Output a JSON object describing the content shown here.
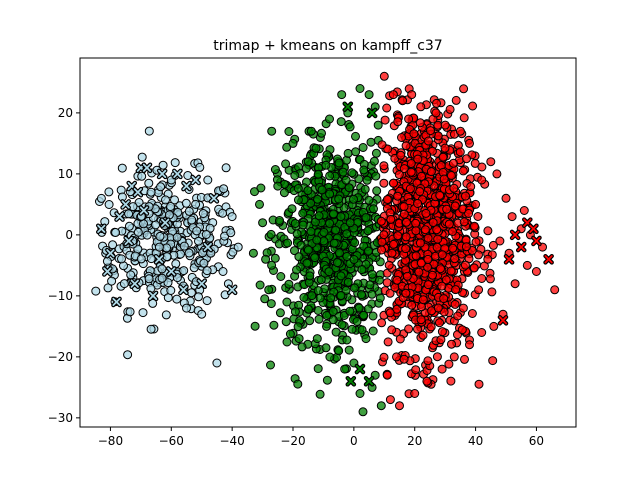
{
  "chart_data": {
    "type": "scatter",
    "title": "trimap + kmeans on kampff_c37",
    "xlabel": "",
    "ylabel": "",
    "xlim": [
      -90,
      73
    ],
    "ylim": [
      -31.5,
      29
    ],
    "xticks": [
      -80,
      -60,
      -40,
      -20,
      0,
      20,
      40,
      60
    ],
    "yticks": [
      -30,
      -20,
      -10,
      0,
      10,
      20
    ],
    "grid": false,
    "legend": "none",
    "marker_edge_color": "#000000",
    "series": [
      {
        "cluster": 0,
        "color": "#add8e6",
        "cloud": {
          "cx": -62,
          "cy": -1,
          "sx": 12,
          "sy": 5.5,
          "xmin": -85,
          "xmax": -38,
          "count": 380
        },
        "circles": [
          [
            -45,
            -21
          ],
          [
            -42,
            11
          ],
          [
            -55,
            -12
          ],
          [
            -50,
            -13
          ],
          [
            -48,
            9
          ],
          [
            -40,
            3
          ],
          [
            -43,
            -6
          ],
          [
            -60,
            9
          ],
          [
            -38,
            -2
          ],
          [
            -52,
            5
          ],
          [
            -47,
            -3
          ],
          [
            -58,
            -7
          ]
        ],
        "crosses": [
          [
            -70,
            11
          ],
          [
            -68,
            11
          ],
          [
            -63,
            10
          ],
          [
            -58,
            10
          ],
          [
            -55,
            8
          ],
          [
            -73,
            8
          ],
          [
            -78,
            -11
          ],
          [
            -80,
            -3
          ],
          [
            -75,
            5
          ],
          [
            -72,
            -8
          ],
          [
            -66,
            -10
          ],
          [
            -62,
            2
          ],
          [
            -83,
            1
          ],
          [
            -60,
            -6
          ],
          [
            -52,
            9
          ],
          [
            -48,
            -2
          ],
          [
            -46,
            6
          ],
          [
            -40,
            -9
          ],
          [
            -50,
            -8
          ],
          [
            -77,
            3
          ],
          [
            -69,
            4
          ],
          [
            -64,
            -4
          ],
          [
            -56,
            -9
          ],
          [
            -81,
            -6
          ],
          [
            -74,
            -1
          ],
          [
            -71,
            7
          ]
        ]
      },
      {
        "cluster": 1,
        "color": "#008000",
        "cloud": {
          "cx": -7,
          "cy": -1,
          "sx": 9,
          "sy": 8,
          "xmin": -33,
          "xmax": 9,
          "count": 750
        },
        "circles": [
          [
            -27,
            17
          ],
          [
            -20,
            15
          ],
          [
            -2,
            20
          ],
          [
            2,
            24
          ],
          [
            5,
            23
          ],
          [
            7,
            21
          ],
          [
            -4,
            23
          ],
          [
            -8,
            19
          ],
          [
            -14,
            17
          ],
          [
            8,
            18
          ],
          [
            -18,
            -17
          ],
          [
            -12,
            -17
          ],
          [
            -5,
            -19
          ],
          [
            0,
            -21
          ],
          [
            2,
            -26
          ],
          [
            6,
            -25
          ],
          [
            9,
            -28
          ],
          [
            3,
            -29
          ],
          [
            -3,
            -22
          ],
          [
            -9,
            -15
          ],
          [
            -29,
            -4
          ],
          [
            -30,
            2
          ],
          [
            -25,
            8
          ],
          [
            -33,
            -3
          ],
          [
            -31,
            5
          ],
          [
            -28,
            -9
          ],
          [
            -22,
            -11
          ],
          [
            7,
            -23
          ],
          [
            4,
            -17
          ],
          [
            -15,
            12
          ]
        ],
        "crosses": [
          [
            -2,
            21
          ],
          [
            6,
            20
          ],
          [
            -1,
            -24
          ],
          [
            5,
            -24
          ],
          [
            2,
            -22
          ]
        ]
      },
      {
        "cluster": 2,
        "color": "#ff0000",
        "cloud": {
          "cx": 23,
          "cy": 1,
          "sx": 8,
          "sy": 10,
          "xmin": 9,
          "xmax": 46,
          "count": 1100
        },
        "circles": [
          [
            10,
            26
          ],
          [
            13,
            23
          ],
          [
            16,
            22
          ],
          [
            19,
            23
          ],
          [
            22,
            21
          ],
          [
            26,
            19
          ],
          [
            30,
            18
          ],
          [
            35,
            17
          ],
          [
            38,
            15
          ],
          [
            45,
            12
          ],
          [
            47,
            10
          ],
          [
            50,
            6
          ],
          [
            52,
            3
          ],
          [
            55,
            1
          ],
          [
            58,
            0
          ],
          [
            62,
            -2
          ],
          [
            66,
            -9
          ],
          [
            60,
            -6
          ],
          [
            57,
            -5
          ],
          [
            53,
            -8
          ],
          [
            49,
            -13
          ],
          [
            46,
            -15
          ],
          [
            42,
            -16
          ],
          [
            38,
            -18
          ],
          [
            33,
            -20
          ],
          [
            29,
            -22
          ],
          [
            24,
            -24
          ],
          [
            20,
            -26
          ],
          [
            15,
            -28
          ],
          [
            12,
            -27
          ],
          [
            11,
            -23
          ],
          [
            14,
            -20
          ],
          [
            40,
            5
          ],
          [
            44,
            -4
          ],
          [
            48,
            -1
          ],
          [
            42,
            9
          ],
          [
            51,
            -3
          ],
          [
            56,
            4
          ],
          [
            36,
            -12
          ],
          [
            41,
            -9
          ],
          [
            18,
            19
          ],
          [
            27,
            20
          ]
        ],
        "crosses": [
          [
            49,
            -14
          ],
          [
            57,
            2
          ],
          [
            59,
            1
          ],
          [
            60,
            -1
          ],
          [
            64,
            -4
          ],
          [
            55,
            -2
          ],
          [
            53,
            0
          ],
          [
            51,
            -4
          ]
        ]
      }
    ]
  }
}
